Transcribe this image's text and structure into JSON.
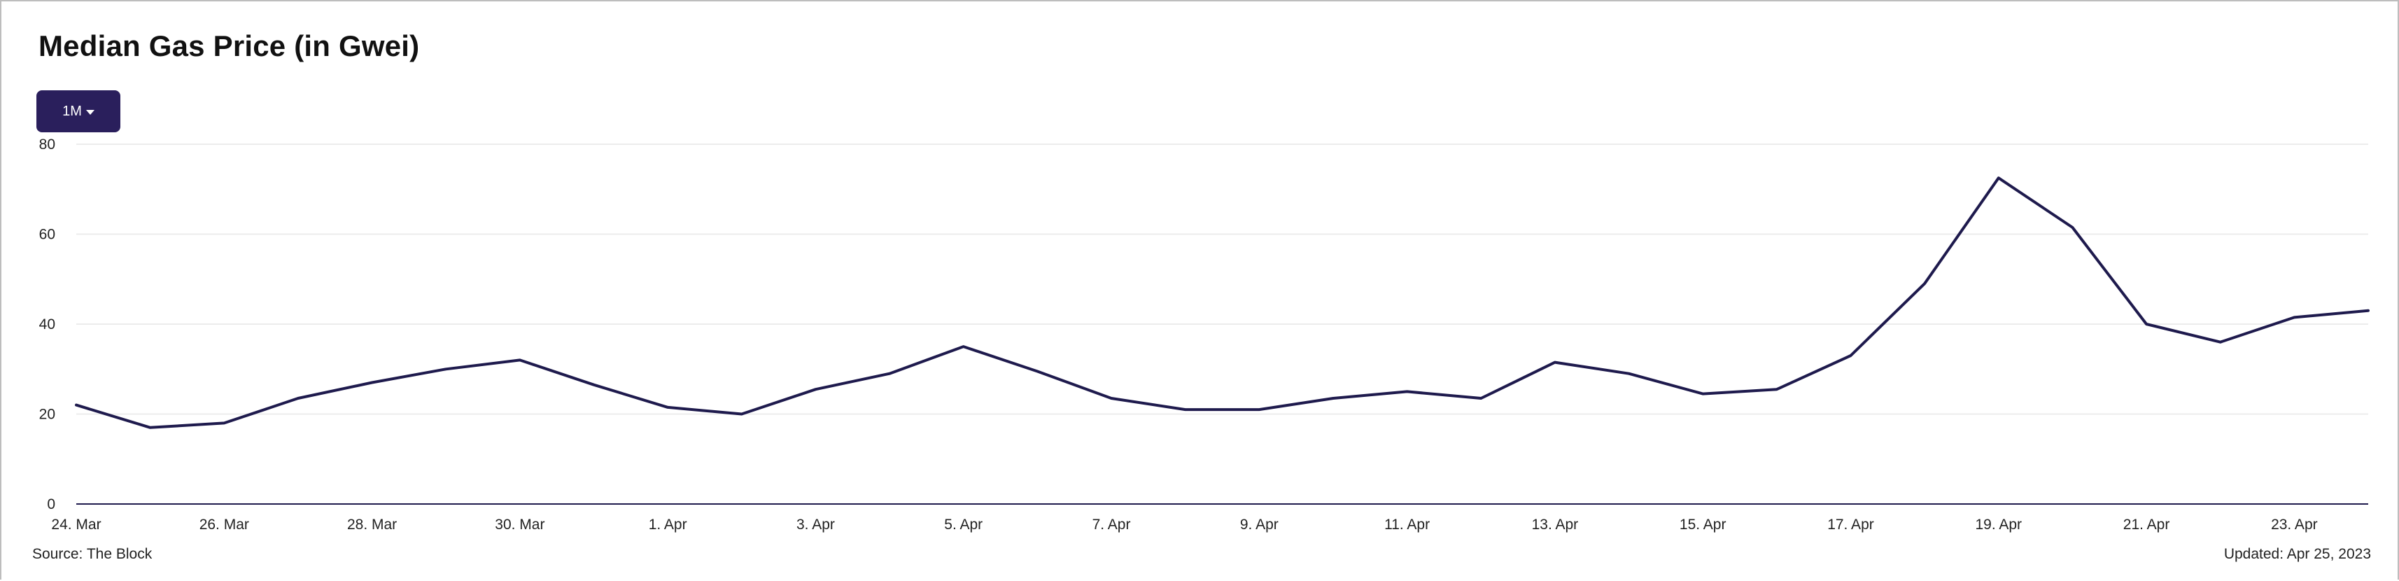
{
  "header": {
    "title": "Median Gas Price (in Gwei)",
    "range_label": "1M"
  },
  "footer": {
    "source": "Source: The Block",
    "updated": "Updated: Apr 25, 2023"
  },
  "colors": {
    "line": "#1e1a4d",
    "button": "#2a1f5c",
    "grid": "#ececec",
    "axis": "#1e1a4d"
  },
  "chart_data": {
    "type": "line",
    "title": "Median Gas Price (in Gwei)",
    "xlabel": "",
    "ylabel": "",
    "ylim": [
      0,
      80
    ],
    "yticks": [
      0,
      20,
      40,
      60,
      80
    ],
    "grid": true,
    "x": [
      "24. Mar",
      "25. Mar",
      "26. Mar",
      "27. Mar",
      "28. Mar",
      "29. Mar",
      "30. Mar",
      "31. Mar",
      "1. Apr",
      "2. Apr",
      "3. Apr",
      "4. Apr",
      "5. Apr",
      "6. Apr",
      "7. Apr",
      "8. Apr",
      "9. Apr",
      "10. Apr",
      "11. Apr",
      "12. Apr",
      "13. Apr",
      "14. Apr",
      "15. Apr",
      "16. Apr",
      "17. Apr",
      "18. Apr",
      "19. Apr",
      "20. Apr",
      "21. Apr",
      "22. Apr",
      "23. Apr",
      "24. Apr"
    ],
    "xtick_labels": [
      "24. Mar",
      "26. Mar",
      "28. Mar",
      "30. Mar",
      "1. Apr",
      "3. Apr",
      "5. Apr",
      "7. Apr",
      "9. Apr",
      "11. Apr",
      "13. Apr",
      "15. Apr",
      "17. Apr",
      "19. Apr",
      "21. Apr",
      "23. Apr"
    ],
    "series": [
      {
        "values": [
          22,
          17,
          18,
          23.5,
          27,
          30,
          32,
          26.5,
          21.5,
          20,
          25.5,
          29,
          35,
          29.5,
          23.5,
          21,
          21,
          23.5,
          25,
          23.5,
          31.5,
          29,
          24.5,
          25.5,
          33,
          49,
          72.5,
          61.5,
          40,
          36,
          41.5,
          43
        ]
      }
    ]
  }
}
